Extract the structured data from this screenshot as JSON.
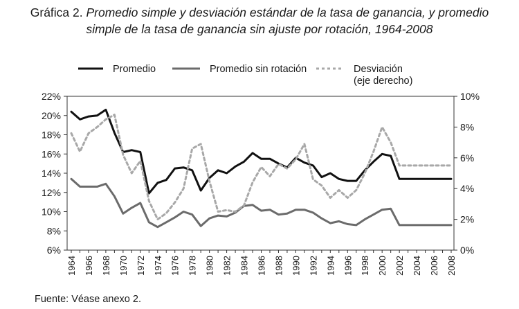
{
  "title_lead": "Gráfica 2.",
  "title_line1": "Promedio simple y desviación estándar de la tasa de ganancia, y promedio",
  "title_line2": "simple de la tasa de ganancia sin ajuste por rotación, 1964-2008",
  "source": "Fuente: Véase anexo 2.",
  "colors": {
    "promedio": "#111111",
    "sin_rotacion": "#6b6b6b",
    "desviacion": "#a8a8a8"
  },
  "chart_data": {
    "type": "line",
    "x": [
      1964,
      1965,
      1966,
      1967,
      1968,
      1969,
      1970,
      1971,
      1972,
      1973,
      1974,
      1975,
      1976,
      1977,
      1978,
      1979,
      1980,
      1981,
      1982,
      1983,
      1984,
      1985,
      1986,
      1987,
      1988,
      1989,
      1990,
      1991,
      1992,
      1993,
      1994,
      1995,
      1996,
      1997,
      1998,
      1999,
      2000,
      2001,
      2002,
      2003,
      2004,
      2005,
      2006,
      2007,
      2008
    ],
    "xticks": [
      "1964",
      "1966",
      "1968",
      "1970",
      "1972",
      "1974",
      "1976",
      "1978",
      "1980",
      "1982",
      "1984",
      "1986",
      "1988",
      "1990",
      "1992",
      "1994",
      "1996",
      "1998",
      "2000",
      "2002",
      "2004",
      "2006",
      "2008"
    ],
    "yticks_left": [
      "6%",
      "8%",
      "10%",
      "12%",
      "14%",
      "16%",
      "18%",
      "20%",
      "22%"
    ],
    "yticks_right": [
      "0%",
      "2%",
      "4%",
      "6%",
      "8%",
      "10%"
    ],
    "ylim_left": [
      6,
      22
    ],
    "ylim_right": [
      0,
      10
    ],
    "grid": false,
    "legend_position": "top",
    "series": [
      {
        "name": "Promedio",
        "axis": "left",
        "style": "solid",
        "values": [
          20.4,
          19.6,
          19.9,
          20.0,
          20.6,
          18.2,
          16.2,
          16.4,
          16.2,
          11.9,
          13.0,
          13.3,
          14.5,
          14.6,
          14.3,
          12.2,
          13.5,
          14.3,
          14.0,
          14.7,
          15.2,
          16.1,
          15.5,
          15.5,
          15.0,
          14.6,
          15.6,
          15.1,
          14.8,
          13.6,
          14.0,
          13.4,
          13.2,
          13.2,
          14.3,
          15.2,
          16.0,
          15.8,
          13.4,
          13.4,
          13.4,
          13.4,
          13.4,
          13.4,
          13.4
        ]
      },
      {
        "name": "Promedio sin rotación",
        "axis": "left",
        "style": "solid",
        "values": [
          13.4,
          12.6,
          12.6,
          12.6,
          12.9,
          11.6,
          9.8,
          10.4,
          10.9,
          8.9,
          8.4,
          8.9,
          9.4,
          10.0,
          9.7,
          8.5,
          9.3,
          9.6,
          9.5,
          9.9,
          10.6,
          10.7,
          10.1,
          10.2,
          9.7,
          9.8,
          10.2,
          10.2,
          9.9,
          9.3,
          8.8,
          9.0,
          8.7,
          8.6,
          9.2,
          9.7,
          10.2,
          10.3,
          8.6,
          8.6,
          8.6,
          8.6,
          8.6,
          8.6,
          8.6
        ]
      },
      {
        "name": "Desviación",
        "name_line2": "(eje derecho)",
        "axis": "right",
        "style": "dashed",
        "values": [
          7.6,
          6.4,
          7.6,
          8.0,
          8.5,
          8.8,
          6.2,
          5.0,
          5.8,
          3.2,
          2.0,
          2.4,
          3.1,
          4.0,
          6.6,
          6.9,
          4.5,
          2.5,
          2.6,
          2.5,
          2.9,
          4.4,
          5.4,
          4.8,
          5.6,
          5.3,
          5.9,
          6.9,
          4.6,
          4.2,
          3.4,
          3.9,
          3.4,
          3.9,
          5.0,
          6.4,
          8.0,
          7.0,
          5.5,
          5.5,
          5.5,
          5.5,
          5.5,
          5.5,
          5.5
        ]
      }
    ],
    "xlabel": "",
    "ylabel": ""
  }
}
